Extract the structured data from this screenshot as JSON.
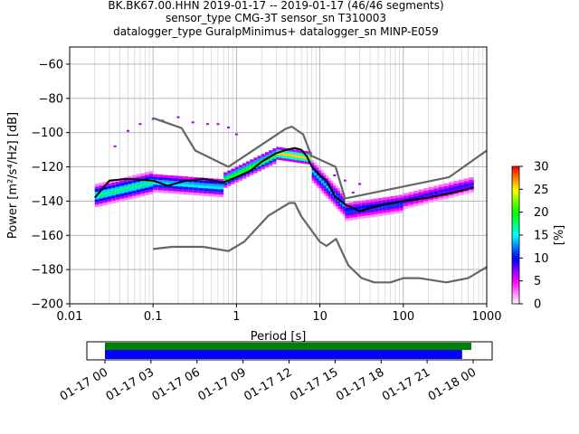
{
  "title_lines": [
    "BK.BK67.00.HHN   2019-01-17 -- 2019-01-17  (46/46 segments)",
    "sensor_type CMG-3T sensor_sn T310003",
    "datalogger_type GuralpMinimus+ datalogger_sn MINP-E059"
  ],
  "chart_data": {
    "type": "heatmap",
    "xlabel": "Period [s]",
    "ylabel": "Power [m²/s⁴/Hz] [dB]",
    "x_scale": "log",
    "xlim": [
      0.01,
      1000
    ],
    "ylim": [
      -200,
      -50
    ],
    "x_ticks": [
      0.01,
      0.1,
      1,
      10,
      100,
      1000
    ],
    "x_tick_labels": [
      "0.01",
      "0.1",
      "1",
      "10",
      "100",
      "1000"
    ],
    "y_ticks": [
      -60,
      -80,
      -100,
      -120,
      -140,
      -160,
      -180,
      -200
    ],
    "y_tick_labels": [
      "−60",
      "−80",
      "−100",
      "−120",
      "−140",
      "−160",
      "−180",
      "−200"
    ],
    "grid": true,
    "colorbar": {
      "label": "[%]",
      "range": [
        0,
        30
      ],
      "ticks": [
        0,
        5,
        10,
        15,
        20,
        25,
        30
      ],
      "tick_labels": [
        "0",
        "5",
        "10",
        "15",
        "20",
        "25",
        "30"
      ],
      "colors": [
        "#ffffff",
        "#ff00ff",
        "#0000ff",
        "#00ffff",
        "#00ff00",
        "#ffff00",
        "#ff0000"
      ]
    },
    "series": [
      {
        "role": "mode",
        "color": "#000000",
        "x": [
          0.02,
          0.03,
          0.05,
          0.1,
          0.15,
          0.25,
          0.4,
          0.7,
          1,
          1.5,
          2,
          3,
          4,
          5,
          6,
          7,
          8,
          10,
          12,
          15,
          20,
          25,
          30,
          40,
          60,
          100,
          200,
          400,
          700
        ],
        "y": [
          -138,
          -128,
          -127,
          -128,
          -131,
          -128,
          -127,
          -129,
          -126,
          -122,
          -117,
          -112,
          -110,
          -109,
          -110,
          -114,
          -120,
          -125,
          -128,
          -137,
          -142,
          -144,
          -146,
          -144,
          -142,
          -140,
          -138,
          -135,
          -132
        ]
      },
      {
        "role": "new_high_noise_model",
        "color": "#666666",
        "x": [
          0.1,
          0.22,
          0.32,
          0.8,
          3.8,
          4.6,
          6.3,
          7.9,
          15.4,
          20,
          354.8,
          1000
        ],
        "y": [
          -91.5,
          -97.4,
          -110.5,
          -120,
          -98,
          -96.5,
          -101,
          -113.5,
          -120,
          -138.5,
          -126,
          -110.5
        ]
      },
      {
        "role": "new_low_noise_model",
        "color": "#666666",
        "x": [
          0.1,
          0.17,
          0.4,
          0.8,
          1.24,
          2.4,
          4.3,
          5,
          6,
          10,
          12,
          15.6,
          21.9,
          31.6,
          45,
          70,
          101,
          154,
          328,
          600,
          1000
        ],
        "y": [
          -168,
          -166.7,
          -166.7,
          -169.2,
          -163.7,
          -148.6,
          -141.1,
          -141.1,
          -149,
          -163.8,
          -166.2,
          -162.1,
          -177.5,
          -185,
          -187.5,
          -187.5,
          -185,
          -185,
          -187.5,
          -185,
          -178.5
        ]
      }
    ],
    "heat_bands": [
      {
        "x": [
          0.02,
          0.1
        ],
        "y_center": [
          -137,
          -129
        ],
        "spread": 6,
        "level": 18
      },
      {
        "x": [
          0.1,
          0.7
        ],
        "y_center": [
          -129,
          -132
        ],
        "spread": 5,
        "level": 16
      },
      {
        "x": [
          0.7,
          3
        ],
        "y_center": [
          -128,
          -113
        ],
        "spread": 4,
        "level": 22
      },
      {
        "x": [
          3,
          8
        ],
        "y_center": [
          -112,
          -115
        ],
        "spread": 3,
        "level": 26
      },
      {
        "x": [
          8,
          20
        ],
        "y_center": [
          -122,
          -143
        ],
        "spread": 6,
        "level": 14
      },
      {
        "x": [
          20,
          100
        ],
        "y_center": [
          -146,
          -141
        ],
        "spread": 5,
        "level": 12
      },
      {
        "x": [
          100,
          700
        ],
        "y_center": [
          -140,
          -130
        ],
        "spread": 4,
        "level": 10
      }
    ],
    "scatter_outliers": {
      "x": [
        0.035,
        0.05,
        0.07,
        0.1,
        0.13,
        0.2,
        0.3,
        0.45,
        0.6,
        0.8,
        1.0,
        15,
        20,
        25,
        30
      ],
      "y": [
        -108,
        -99,
        -95,
        -92,
        -93,
        -91,
        -94,
        -95,
        -95,
        -97,
        -101,
        -125,
        -128,
        -135,
        -130
      ]
    }
  },
  "time_axis": {
    "tick_labels": [
      "01-17 00",
      "01-17 03",
      "01-17 06",
      "01-17 09",
      "01-17 12",
      "01-17 15",
      "01-17 18",
      "01-17 21",
      "01-18 00"
    ],
    "data_coverage_fraction": 0.97,
    "gap_coverage_fraction": 0.98,
    "coverage_color": "#0000ff",
    "gap_bar_color": "#008000"
  }
}
